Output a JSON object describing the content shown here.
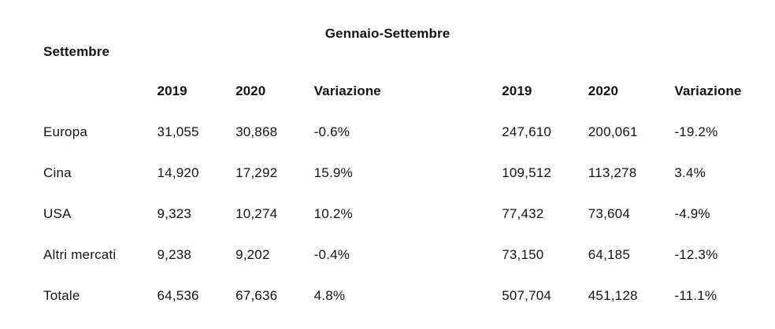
{
  "colors": {
    "background": "#ffffff",
    "text": "#141414"
  },
  "chart_data": {
    "type": "table",
    "group_headers": [
      "Settembre",
      "Gennaio-Settembre"
    ],
    "columns": [
      "",
      "2019",
      "2020",
      "Variazione",
      "2019",
      "2020",
      "Variazione"
    ],
    "rows": [
      {
        "label": "Europa",
        "cells": [
          "31,055",
          "30,868",
          "-0.6%",
          "247,610",
          "200,061",
          "-19.2%"
        ]
      },
      {
        "label": "Cina",
        "cells": [
          "14,920",
          "17,292",
          "15.9%",
          "109,512",
          "113,278",
          "3.4%"
        ]
      },
      {
        "label": "USA",
        "cells": [
          "9,323",
          "10,274",
          "10.2%",
          "77,432",
          "73,604",
          "-4.9%"
        ]
      },
      {
        "label": "Altri mercati",
        "cells": [
          "9,238",
          "9,202",
          "-0.4%",
          "73,150",
          "64,185",
          "-12.3%"
        ]
      },
      {
        "label": "Totale",
        "cells": [
          "64,536",
          "67,636",
          "4.8%",
          "507,704",
          "451,128",
          "-11.1%"
        ]
      }
    ]
  }
}
